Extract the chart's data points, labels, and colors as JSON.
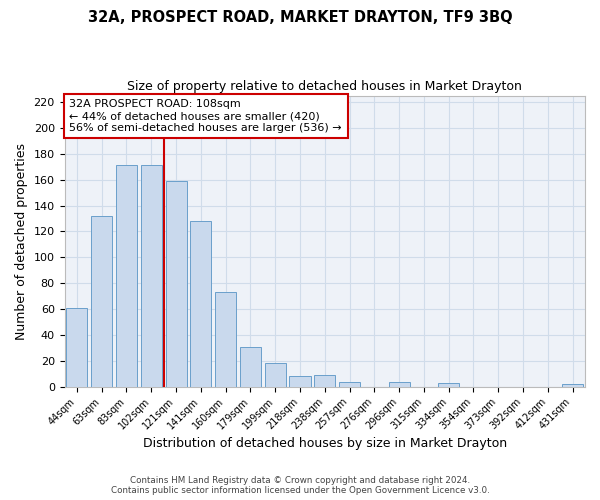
{
  "title": "32A, PROSPECT ROAD, MARKET DRAYTON, TF9 3BQ",
  "subtitle": "Size of property relative to detached houses in Market Drayton",
  "xlabel": "Distribution of detached houses by size in Market Drayton",
  "ylabel": "Number of detached properties",
  "bar_color": "#c9d9ed",
  "bar_edge_color": "#6a9fcb",
  "grid_color": "#d0dcea",
  "background_color": "#ffffff",
  "plot_bg_color": "#eef2f8",
  "categories": [
    "44sqm",
    "63sqm",
    "83sqm",
    "102sqm",
    "121sqm",
    "141sqm",
    "160sqm",
    "179sqm",
    "199sqm",
    "218sqm",
    "238sqm",
    "257sqm",
    "276sqm",
    "296sqm",
    "315sqm",
    "334sqm",
    "354sqm",
    "373sqm",
    "392sqm",
    "412sqm",
    "431sqm"
  ],
  "values": [
    61,
    132,
    171,
    171,
    159,
    128,
    73,
    31,
    18,
    8,
    9,
    4,
    0,
    4,
    0,
    3,
    0,
    0,
    0,
    0,
    2
  ],
  "ylim": [
    0,
    225
  ],
  "yticks": [
    0,
    20,
    40,
    60,
    80,
    100,
    120,
    140,
    160,
    180,
    200,
    220
  ],
  "vline_x": 3.5,
  "vline_color": "#cc0000",
  "annotation_title": "32A PROSPECT ROAD: 108sqm",
  "annotation_line1": "← 44% of detached houses are smaller (420)",
  "annotation_line2": "56% of semi-detached houses are larger (536) →",
  "annotation_box_color": "#ffffff",
  "annotation_box_edge_color": "#cc0000",
  "footer1": "Contains HM Land Registry data © Crown copyright and database right 2024.",
  "footer2": "Contains public sector information licensed under the Open Government Licence v3.0."
}
